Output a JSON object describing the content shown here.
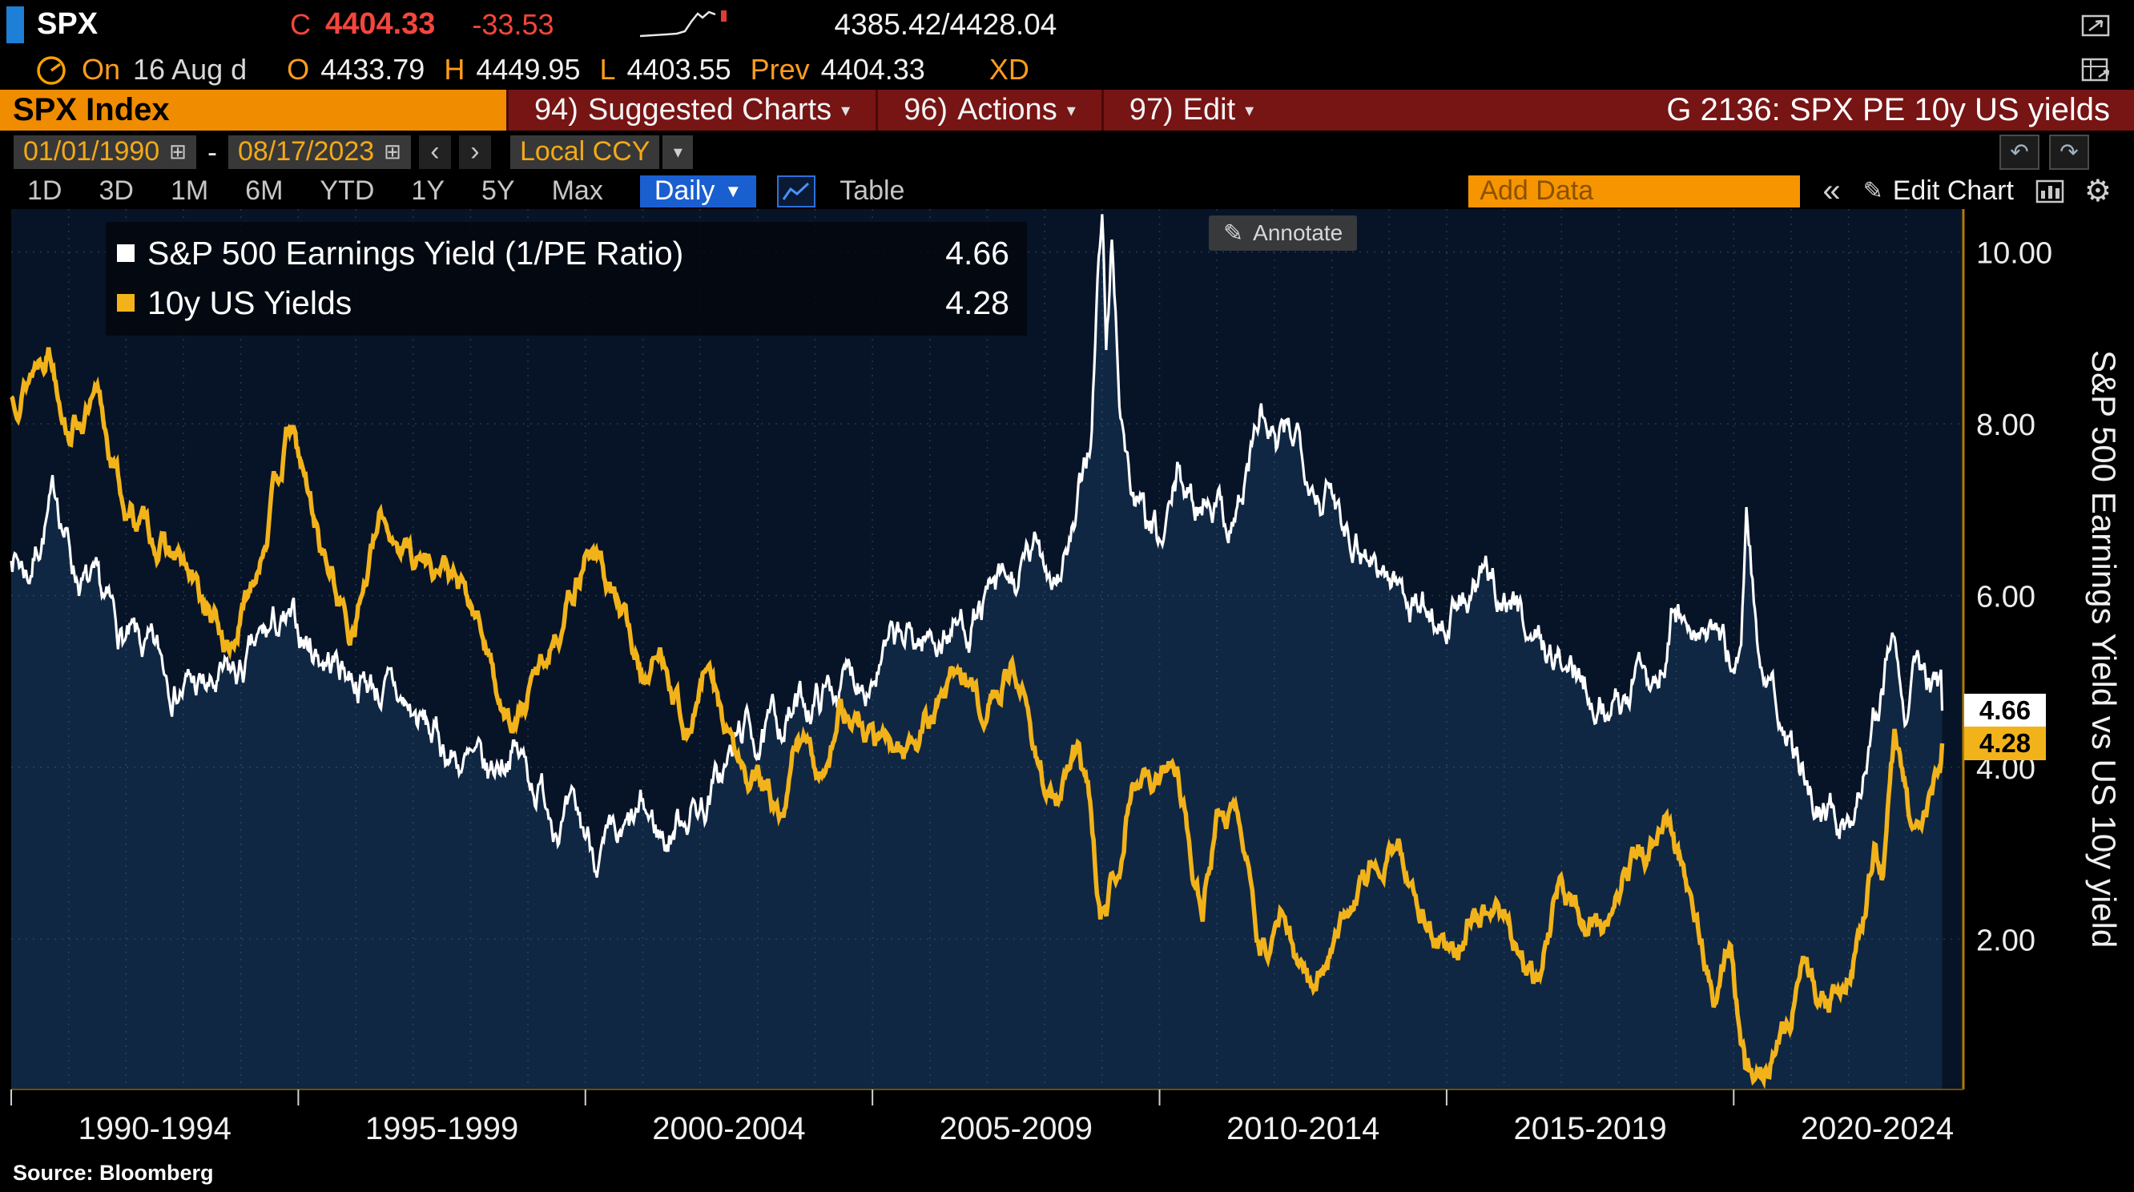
{
  "titlebar": {
    "ticker": "SPX",
    "close_label": "C",
    "close_value": "4404.33",
    "change": "-33.53",
    "bid_ask": "4385.42/4428.04"
  },
  "quote_row": {
    "session_label": "On",
    "session_date": "16 Aug d",
    "open_label": "O",
    "open": "4433.79",
    "high_label": "H",
    "high": "4449.95",
    "low_label": "L",
    "low": "4403.55",
    "prev_label": "Prev",
    "prev_close": "4404.33",
    "xd_label": "XD"
  },
  "menu_bar": {
    "security_field": "SPX Index",
    "items": [
      {
        "num": "94)",
        "label": "Suggested Charts"
      },
      {
        "num": "96)",
        "label": "Actions"
      },
      {
        "num": "97)",
        "label": "Edit"
      }
    ],
    "chart_title": "G 2136: SPX PE 10y US yields"
  },
  "control_bar": {
    "date_from": "01/01/1990",
    "range_separator": "-",
    "date_to": "08/17/2023",
    "currency": "Local CCY"
  },
  "toolbar": {
    "ranges": [
      "1D",
      "3D",
      "1M",
      "6M",
      "YTD",
      "1Y",
      "5Y",
      "Max"
    ],
    "frequency": "Daily",
    "table_label": "Table",
    "add_data_placeholder": "Add Data",
    "collapse_label": "«",
    "edit_chart_label": "Edit Chart",
    "annotate_label": "Annotate"
  },
  "chart_data": {
    "type": "line",
    "x_range": [
      1990,
      2024
    ],
    "ylim": [
      0.25,
      10.5
    ],
    "yticks": [
      2,
      4,
      6,
      8,
      10
    ],
    "ytick_labels": [
      "2.00",
      "4.00",
      "6.00",
      "8.00",
      "10.00"
    ],
    "x_groups": [
      {
        "start": 1990,
        "label": "1990-1994"
      },
      {
        "start": 1995,
        "label": "1995-1999"
      },
      {
        "start": 2000,
        "label": "2000-2004"
      },
      {
        "start": 2005,
        "label": "2005-2009"
      },
      {
        "start": 2010,
        "label": "2010-2014"
      },
      {
        "start": 2015,
        "label": "2015-2019"
      },
      {
        "start": 2020,
        "label": "2020-2024"
      }
    ],
    "right_axis_title": "S&P 500 Earnings Yield vs US 10y yield",
    "plot_bg": "#071427",
    "grid_color": "#64788f",
    "axis_color": "#b07c00",
    "series": [
      {
        "name": "S&P 500 Earnings Yield (1/PE Ratio)",
        "current": "4.66",
        "color": "#ffffff",
        "area_fill": "#102743",
        "points": [
          [
            1990.0,
            6.55
          ],
          [
            1990.3,
            6.3
          ],
          [
            1990.6,
            6.9
          ],
          [
            1990.8,
            7.15
          ],
          [
            1991.1,
            6.35
          ],
          [
            1991.5,
            5.9
          ],
          [
            1992.0,
            5.45
          ],
          [
            1992.5,
            5.2
          ],
          [
            1993.0,
            5.0
          ],
          [
            1993.5,
            4.85
          ],
          [
            1994.0,
            5.05
          ],
          [
            1994.6,
            5.6
          ],
          [
            1995.0,
            5.5
          ],
          [
            1995.5,
            5.3
          ],
          [
            1996.0,
            5.1
          ],
          [
            1996.5,
            4.9
          ],
          [
            1997.0,
            4.6
          ],
          [
            1997.5,
            4.25
          ],
          [
            1997.9,
            4.05
          ],
          [
            1998.3,
            3.8
          ],
          [
            1998.7,
            4.3
          ],
          [
            1999.0,
            3.95
          ],
          [
            1999.4,
            3.6
          ],
          [
            1999.8,
            3.3
          ],
          [
            2000.2,
            3.05
          ],
          [
            2000.6,
            2.95
          ],
          [
            2001.0,
            3.4
          ],
          [
            2001.4,
            3.15
          ],
          [
            2001.75,
            3.55
          ],
          [
            2002.1,
            3.6
          ],
          [
            2002.5,
            4.05
          ],
          [
            2002.75,
            4.45
          ],
          [
            2003.1,
            4.3
          ],
          [
            2003.5,
            4.6
          ],
          [
            2004.0,
            4.8
          ],
          [
            2004.5,
            5.0
          ],
          [
            2005.0,
            5.2
          ],
          [
            2005.5,
            5.4
          ],
          [
            2006.0,
            5.5
          ],
          [
            2006.5,
            5.65
          ],
          [
            2007.0,
            5.9
          ],
          [
            2007.5,
            6.1
          ],
          [
            2007.9,
            6.5
          ],
          [
            2008.2,
            6.3
          ],
          [
            2008.55,
            6.8
          ],
          [
            2008.8,
            7.8
          ],
          [
            2008.92,
            9.6
          ],
          [
            2009.0,
            10.4
          ],
          [
            2009.07,
            8.8
          ],
          [
            2009.17,
            10.1
          ],
          [
            2009.3,
            8.4
          ],
          [
            2009.5,
            7.3
          ],
          [
            2009.8,
            6.7
          ],
          [
            2010.05,
            6.5
          ],
          [
            2010.35,
            7.4
          ],
          [
            2010.6,
            7.0
          ],
          [
            2010.9,
            7.3
          ],
          [
            2011.2,
            6.9
          ],
          [
            2011.45,
            7.2
          ],
          [
            2011.75,
            8.1
          ],
          [
            2012.05,
            7.6
          ],
          [
            2012.4,
            7.9
          ],
          [
            2012.8,
            7.3
          ],
          [
            2013.2,
            7.0
          ],
          [
            2013.6,
            6.6
          ],
          [
            2014.0,
            6.2
          ],
          [
            2014.5,
            5.95
          ],
          [
            2015.0,
            5.7
          ],
          [
            2015.6,
            6.1
          ],
          [
            2016.1,
            6.0
          ],
          [
            2016.6,
            5.5
          ],
          [
            2017.0,
            5.2
          ],
          [
            2017.5,
            5.0
          ],
          [
            2018.0,
            4.7
          ],
          [
            2018.35,
            5.2
          ],
          [
            2018.7,
            5.05
          ],
          [
            2018.95,
            5.9
          ],
          [
            2019.3,
            5.4
          ],
          [
            2019.6,
            5.6
          ],
          [
            2019.95,
            5.2
          ],
          [
            2020.13,
            5.6
          ],
          [
            2020.22,
            7.0
          ],
          [
            2020.35,
            6.0
          ],
          [
            2020.5,
            5.1
          ],
          [
            2020.8,
            4.45
          ],
          [
            2021.1,
            4.0
          ],
          [
            2021.5,
            3.65
          ],
          [
            2021.9,
            3.35
          ],
          [
            2022.1,
            3.5
          ],
          [
            2022.35,
            4.5
          ],
          [
            2022.6,
            5.1
          ],
          [
            2022.78,
            5.7
          ],
          [
            2023.0,
            4.95
          ],
          [
            2023.2,
            5.45
          ],
          [
            2023.38,
            5.05
          ],
          [
            2023.55,
            4.8
          ],
          [
            2023.63,
            4.66
          ]
        ]
      },
      {
        "name": "10y US Yields",
        "current": "4.28",
        "color": "#f2b31a",
        "points": [
          [
            1990.0,
            8.3
          ],
          [
            1990.3,
            8.6
          ],
          [
            1990.65,
            9.0
          ],
          [
            1991.0,
            8.05
          ],
          [
            1991.5,
            8.2
          ],
          [
            1992.0,
            7.0
          ],
          [
            1992.6,
            6.6
          ],
          [
            1993.0,
            6.3
          ],
          [
            1993.8,
            5.35
          ],
          [
            1994.1,
            5.9
          ],
          [
            1994.85,
            7.95
          ],
          [
            1995.4,
            6.6
          ],
          [
            1995.9,
            5.6
          ],
          [
            1996.45,
            6.85
          ],
          [
            1997.0,
            6.5
          ],
          [
            1997.6,
            6.3
          ],
          [
            1998.2,
            5.55
          ],
          [
            1998.75,
            4.4
          ],
          [
            1999.3,
            5.3
          ],
          [
            1999.9,
            6.3
          ],
          [
            2000.05,
            6.65
          ],
          [
            2000.5,
            6.0
          ],
          [
            2001.0,
            5.1
          ],
          [
            2001.4,
            5.3
          ],
          [
            2001.8,
            4.4
          ],
          [
            2002.1,
            5.1
          ],
          [
            2002.8,
            3.8
          ],
          [
            2003.2,
            3.7
          ],
          [
            2003.45,
            3.15
          ],
          [
            2003.7,
            4.4
          ],
          [
            2004.1,
            3.9
          ],
          [
            2004.45,
            4.75
          ],
          [
            2005.0,
            4.25
          ],
          [
            2005.5,
            4.2
          ],
          [
            2006.0,
            4.55
          ],
          [
            2006.5,
            5.2
          ],
          [
            2007.0,
            4.6
          ],
          [
            2007.45,
            5.25
          ],
          [
            2007.9,
            4.1
          ],
          [
            2008.2,
            3.55
          ],
          [
            2008.5,
            4.05
          ],
          [
            2008.75,
            3.8
          ],
          [
            2008.97,
            2.1
          ],
          [
            2009.3,
            3.0
          ],
          [
            2009.5,
            3.95
          ],
          [
            2010.0,
            3.85
          ],
          [
            2010.3,
            3.95
          ],
          [
            2010.75,
            2.4
          ],
          [
            2011.1,
            3.7
          ],
          [
            2011.5,
            3.0
          ],
          [
            2011.75,
            1.85
          ],
          [
            2012.2,
            2.2
          ],
          [
            2012.6,
            1.45
          ],
          [
            2013.0,
            2.0
          ],
          [
            2013.7,
            2.95
          ],
          [
            2014.0,
            3.0
          ],
          [
            2014.6,
            2.45
          ],
          [
            2015.1,
            1.65
          ],
          [
            2015.5,
            2.45
          ],
          [
            2016.0,
            2.25
          ],
          [
            2016.55,
            1.4
          ],
          [
            2016.95,
            2.55
          ],
          [
            2017.3,
            2.3
          ],
          [
            2017.7,
            2.1
          ],
          [
            2018.1,
            2.85
          ],
          [
            2018.85,
            3.22
          ],
          [
            2019.3,
            2.4
          ],
          [
            2019.65,
            1.5
          ],
          [
            2019.95,
            1.9
          ],
          [
            2020.2,
            0.6
          ],
          [
            2020.6,
            0.65
          ],
          [
            2020.9,
            0.9
          ],
          [
            2021.25,
            1.72
          ],
          [
            2021.6,
            1.2
          ],
          [
            2021.95,
            1.55
          ],
          [
            2022.2,
            2.3
          ],
          [
            2022.45,
            3.1
          ],
          [
            2022.6,
            2.65
          ],
          [
            2022.8,
            4.25
          ],
          [
            2023.03,
            3.4
          ],
          [
            2023.25,
            3.35
          ],
          [
            2023.45,
            3.75
          ],
          [
            2023.55,
            4.05
          ],
          [
            2023.63,
            4.28
          ]
        ]
      }
    ]
  },
  "footer": {
    "source": "Source: Bloomberg"
  }
}
